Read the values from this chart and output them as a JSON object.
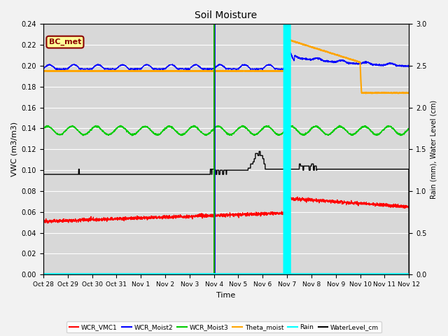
{
  "title": "Soil Moisture",
  "xlabel": "Time",
  "ylabel_left": "VWC (m3/m3)",
  "ylabel_right": "Rain (mm), Water Level (cm)",
  "ylim_left": [
    0.0,
    0.24
  ],
  "ylim_right": [
    0.0,
    3.0
  ],
  "plot_bg_color": "#d8d8d8",
  "fig_bg_color": "#f2f2f2",
  "annotation_label": "BC_met",
  "annotation_color": "#8B0000",
  "annotation_bg": "#ffff99",
  "tick_labels": [
    "Oct 28",
    "Oct 29",
    "Oct 30",
    "Oct 31",
    "Nov 1",
    "Nov 2",
    "Nov 3",
    "Nov 4",
    "Nov 5",
    "Nov 6",
    "Nov 7",
    "Nov 8",
    "Nov 9",
    "Nov 10",
    "Nov 11",
    "Nov 12"
  ],
  "series": {
    "WCR_VMC1": {
      "color": "#ff0000",
      "lw": 0.8
    },
    "WCR_Moist2": {
      "color": "#0000ff",
      "lw": 0.8
    },
    "WCR_Moist3": {
      "color": "#00cc00",
      "lw": 0.9
    },
    "Theta_moist": {
      "color": "#ffa500",
      "lw": 1.5
    },
    "Rain": {
      "color": "#00ffff",
      "lw": 3.0
    },
    "WaterLevel_cm": {
      "color": "#000000",
      "lw": 1.0
    }
  },
  "vline_blue_day": 7,
  "vline_green_day": 7,
  "vline_cyan_day": 10
}
